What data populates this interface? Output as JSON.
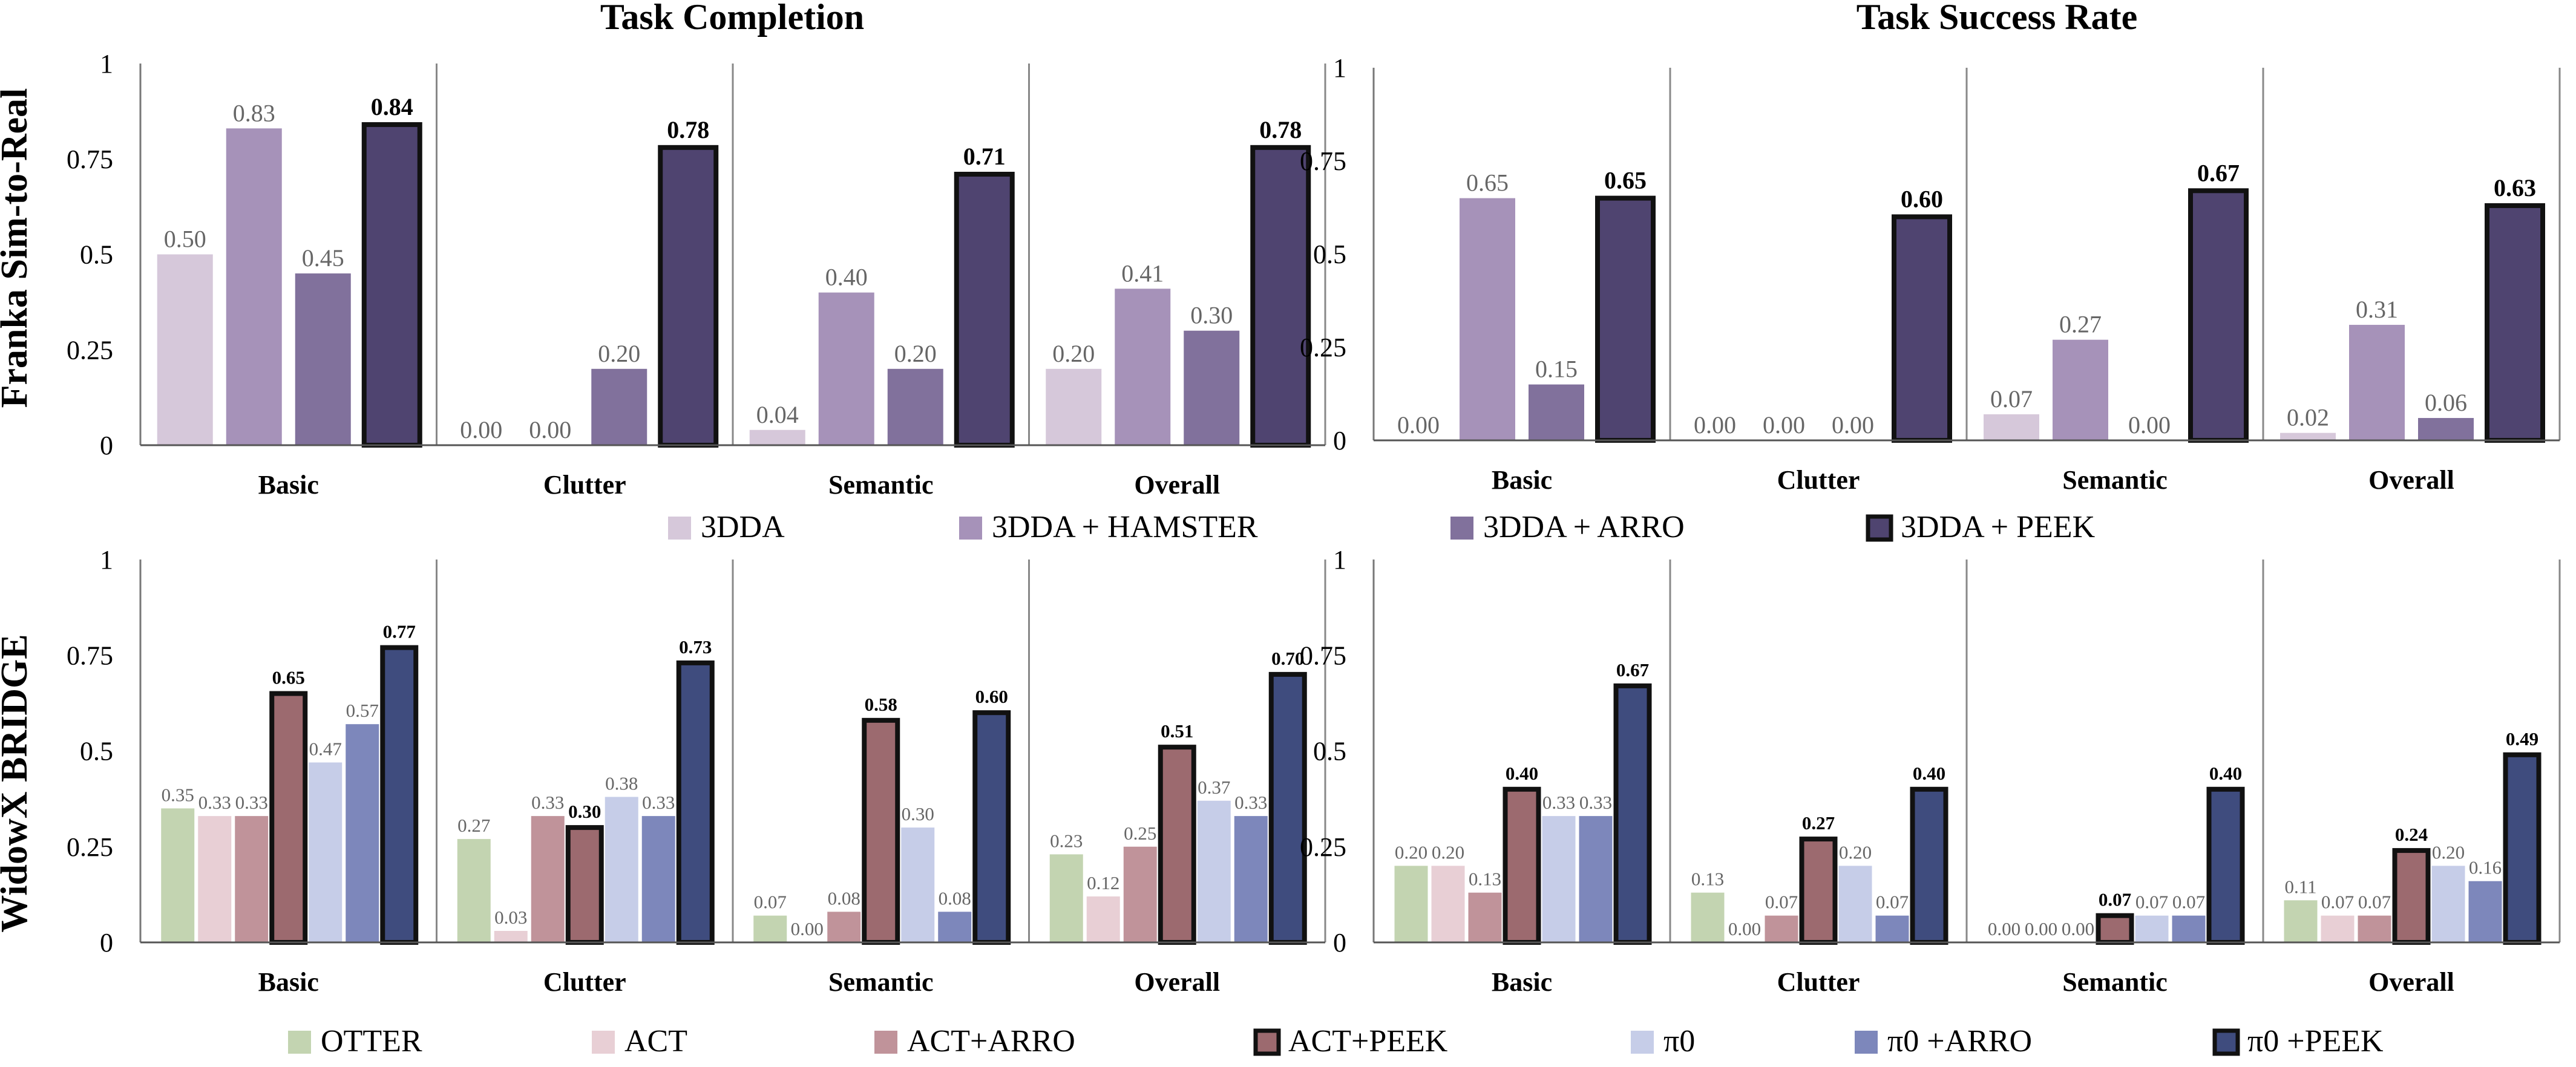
{
  "titles": {
    "left": "Task Completion",
    "right": "Task Success Rate"
  },
  "row_labels": {
    "top": "Franka Sim-to-Real",
    "bottom": "WidowX BRIDGE"
  },
  "categories": [
    "Basic",
    "Clutter",
    "Semantic",
    "Overall"
  ],
  "y_ticks": [
    "0",
    "0.25",
    "0.5",
    "0.75",
    "1"
  ],
  "legends": {
    "top": [
      {
        "label": "3DDA",
        "color": "#d6c8da",
        "outlined": false
      },
      {
        "label": "3DDA + HAMSTER",
        "color": "#a692b9",
        "outlined": false
      },
      {
        "label": "3DDA + ARRO",
        "color": "#81719c",
        "outlined": false
      },
      {
        "label": "3DDA + PEEK",
        "color": "#4f4470",
        "outlined": true
      }
    ],
    "bottom": [
      {
        "label": "OTTER",
        "color": "#c3d4b1",
        "outlined": false
      },
      {
        "label": "ACT",
        "color": "#e8cfd5",
        "outlined": false
      },
      {
        "label": "ACT+ARRO",
        "color": "#c0939a",
        "outlined": false
      },
      {
        "label": "ACT+PEEK",
        "color": "#9c6a6f",
        "outlined": true
      },
      {
        "label": "π0",
        "color": "#c6cde8",
        "outlined": false
      },
      {
        "label": "π0 +ARRO",
        "color": "#7d87bb",
        "outlined": false
      },
      {
        "label": "π0 +PEEK",
        "color": "#3f4c7e",
        "outlined": true
      }
    ]
  },
  "chart_data": [
    {
      "type": "bar",
      "title": "Task Completion",
      "row": "Franka Sim-to-Real",
      "categories": [
        "Basic",
        "Clutter",
        "Semantic",
        "Overall"
      ],
      "ylim": [
        0,
        1
      ],
      "series": [
        {
          "name": "3DDA",
          "values": [
            0.5,
            0.0,
            0.04,
            0.2
          ],
          "labels": [
            "0.50",
            "0.00",
            "0.04",
            "0.20"
          ]
        },
        {
          "name": "3DDA + HAMSTER",
          "values": [
            0.83,
            0.0,
            0.4,
            0.41
          ],
          "labels": [
            "0.83",
            "0.00",
            "0.40",
            "0.41"
          ]
        },
        {
          "name": "3DDA + ARRO",
          "values": [
            0.45,
            0.2,
            0.2,
            0.3
          ],
          "labels": [
            "0.45",
            "0.20",
            "0.20",
            "0.30"
          ]
        },
        {
          "name": "3DDA + PEEK",
          "values": [
            0.84,
            0.78,
            0.71,
            0.78
          ],
          "labels": [
            "0.84",
            "0.78",
            "0.71",
            "0.78"
          ]
        }
      ]
    },
    {
      "type": "bar",
      "title": "Task Success Rate",
      "row": "Franka Sim-to-Real",
      "categories": [
        "Basic",
        "Clutter",
        "Semantic",
        "Overall"
      ],
      "ylim": [
        0,
        1
      ],
      "series": [
        {
          "name": "3DDA",
          "values": [
            0.0,
            0.0,
            0.07,
            0.02
          ],
          "labels": [
            "0.00",
            "0.00",
            "0.07",
            "0.02"
          ]
        },
        {
          "name": "3DDA + HAMSTER",
          "values": [
            0.65,
            0.0,
            0.27,
            0.31
          ],
          "labels": [
            "0.65",
            "0.00",
            "0.27",
            "0.31"
          ]
        },
        {
          "name": "3DDA + ARRO",
          "values": [
            0.15,
            0.0,
            0.0,
            0.06
          ],
          "labels": [
            "0.15",
            "0.00",
            "0.00",
            "0.06"
          ]
        },
        {
          "name": "3DDA + PEEK",
          "values": [
            0.65,
            0.6,
            0.67,
            0.63
          ],
          "labels": [
            "0.65",
            "0.60",
            "0.67",
            "0.63"
          ]
        }
      ]
    },
    {
      "type": "bar",
      "title": "Task Completion",
      "row": "WidowX BRIDGE",
      "categories": [
        "Basic",
        "Clutter",
        "Semantic",
        "Overall"
      ],
      "ylim": [
        0,
        1
      ],
      "series": [
        {
          "name": "OTTER",
          "values": [
            0.35,
            0.27,
            0.07,
            0.23
          ],
          "labels": [
            "0.35",
            "0.27",
            "0.07",
            "0.23"
          ]
        },
        {
          "name": "ACT",
          "values": [
            0.33,
            0.03,
            0.0,
            0.12
          ],
          "labels": [
            "0.33",
            "0.03",
            "0.00",
            "0.12"
          ]
        },
        {
          "name": "ACT+ARRO",
          "values": [
            0.33,
            0.33,
            0.08,
            0.25
          ],
          "labels": [
            "0.33",
            "0.33",
            "0.08",
            "0.25"
          ]
        },
        {
          "name": "ACT+PEEK",
          "values": [
            0.65,
            0.3,
            0.58,
            0.51
          ],
          "labels": [
            "0.65",
            "0.30",
            "0.58",
            "0.51"
          ]
        },
        {
          "name": "π0",
          "values": [
            0.47,
            0.38,
            0.3,
            0.37
          ],
          "labels": [
            "0.47",
            "0.38",
            "0.30",
            "0.37"
          ]
        },
        {
          "name": "π0 +ARRO",
          "values": [
            0.57,
            0.33,
            0.08,
            0.33
          ],
          "labels": [
            "0.57",
            "0.33",
            "0.08",
            "0.33"
          ]
        },
        {
          "name": "π0 +PEEK",
          "values": [
            0.77,
            0.73,
            0.6,
            0.7
          ],
          "labels": [
            "0.77",
            "0.73",
            "0.60",
            "0.70"
          ]
        }
      ]
    },
    {
      "type": "bar",
      "title": "Task Success Rate",
      "row": "WidowX BRIDGE",
      "categories": [
        "Basic",
        "Clutter",
        "Semantic",
        "Overall"
      ],
      "ylim": [
        0,
        1
      ],
      "series": [
        {
          "name": "OTTER",
          "values": [
            0.2,
            0.13,
            0.0,
            0.11
          ],
          "labels": [
            "0.20",
            "0.13",
            "0.00",
            "0.11"
          ]
        },
        {
          "name": "ACT",
          "values": [
            0.2,
            0.0,
            0.0,
            0.07
          ],
          "labels": [
            "0.20",
            "0.00",
            "0.00",
            "0.07"
          ]
        },
        {
          "name": "ACT+ARRO",
          "values": [
            0.13,
            0.07,
            0.0,
            0.07
          ],
          "labels": [
            "0.13",
            "0.07",
            "0.00",
            "0.07"
          ]
        },
        {
          "name": "ACT+PEEK",
          "values": [
            0.4,
            0.27,
            0.07,
            0.24
          ],
          "labels": [
            "0.40",
            "0.27",
            "0.07",
            "0.24"
          ]
        },
        {
          "name": "π0",
          "values": [
            0.33,
            0.2,
            0.07,
            0.2
          ],
          "labels": [
            "0.33",
            "0.20",
            "0.07",
            "0.20"
          ]
        },
        {
          "name": "π0 +ARRO",
          "values": [
            0.33,
            0.07,
            0.07,
            0.16
          ],
          "labels": [
            "0.33",
            "0.07",
            "0.07",
            "0.16"
          ]
        },
        {
          "name": "π0 +PEEK",
          "values": [
            0.67,
            0.4,
            0.4,
            0.49
          ],
          "labels": [
            "0.67",
            "0.40",
            "0.40",
            "0.49"
          ]
        }
      ]
    }
  ]
}
